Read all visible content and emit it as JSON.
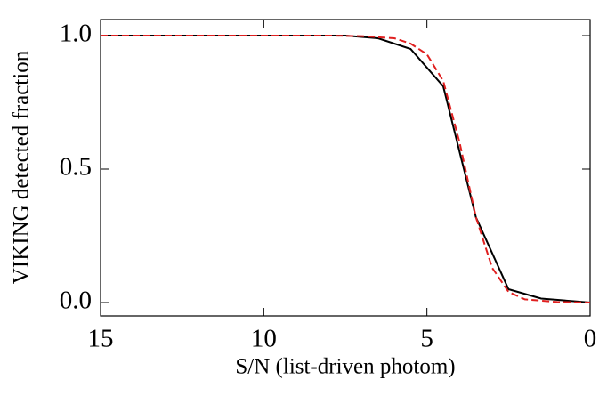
{
  "chart_data": {
    "type": "line",
    "xlabel": "S/N (list-driven photom)",
    "ylabel": "VIKING detected fraction",
    "xlim": [
      15,
      0
    ],
    "xticks": [
      15,
      10,
      5,
      0
    ],
    "ylim": [
      -0.05,
      1.06
    ],
    "yticks": [
      {
        "value": 0,
        "label": "0.0"
      },
      {
        "value": 0.5,
        "label": "0.5"
      },
      {
        "value": 1,
        "label": "1.0"
      }
    ],
    "series": [
      {
        "color": "#000000",
        "style": "solid",
        "x": [
          15,
          7.5,
          6.5,
          5.5,
          4.5,
          3.5,
          2.5,
          1.5,
          0.5,
          0
        ],
        "values": [
          1,
          1,
          0.99,
          0.95,
          0.81,
          0.32,
          0.05,
          0.015,
          0.005,
          0
        ]
      },
      {
        "color": "#e02020",
        "style": "dashed",
        "x": [
          15,
          8,
          7,
          6,
          5.5,
          5,
          4.5,
          4,
          3.5,
          3,
          2.5,
          2,
          1,
          0
        ],
        "values": [
          1,
          1,
          0.998,
          0.99,
          0.97,
          0.93,
          0.83,
          0.6,
          0.32,
          0.13,
          0.04,
          0.012,
          0.002,
          0
        ]
      }
    ]
  }
}
